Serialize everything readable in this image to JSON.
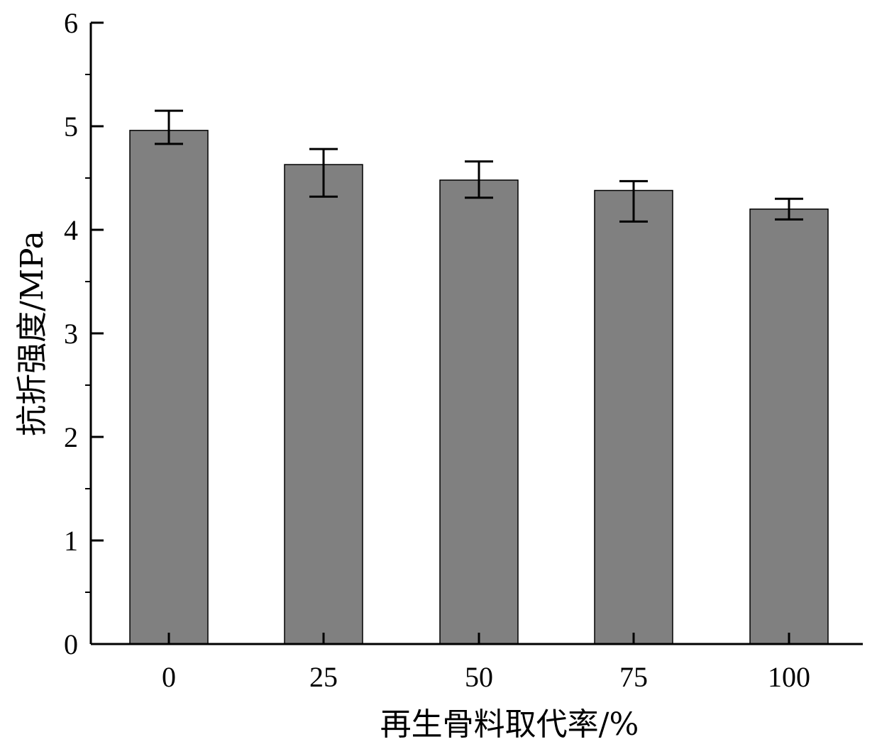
{
  "chart_data": {
    "type": "bar",
    "title": "",
    "xlabel": "再生骨料取代率/%",
    "ylabel": "抗折强度/MPa",
    "categories": [
      "0",
      "25",
      "50",
      "75",
      "100"
    ],
    "values": [
      4.96,
      4.63,
      4.48,
      4.38,
      4.2
    ],
    "error_low": [
      4.83,
      4.32,
      4.31,
      4.08,
      4.1
    ],
    "error_high": [
      5.15,
      4.78,
      4.66,
      4.47,
      4.3
    ],
    "ylim": [
      0,
      6
    ],
    "yticks": [
      0,
      1,
      2,
      3,
      4,
      5,
      6
    ],
    "grid": false,
    "bar_color": "#808080",
    "edge_color": "#000000"
  }
}
